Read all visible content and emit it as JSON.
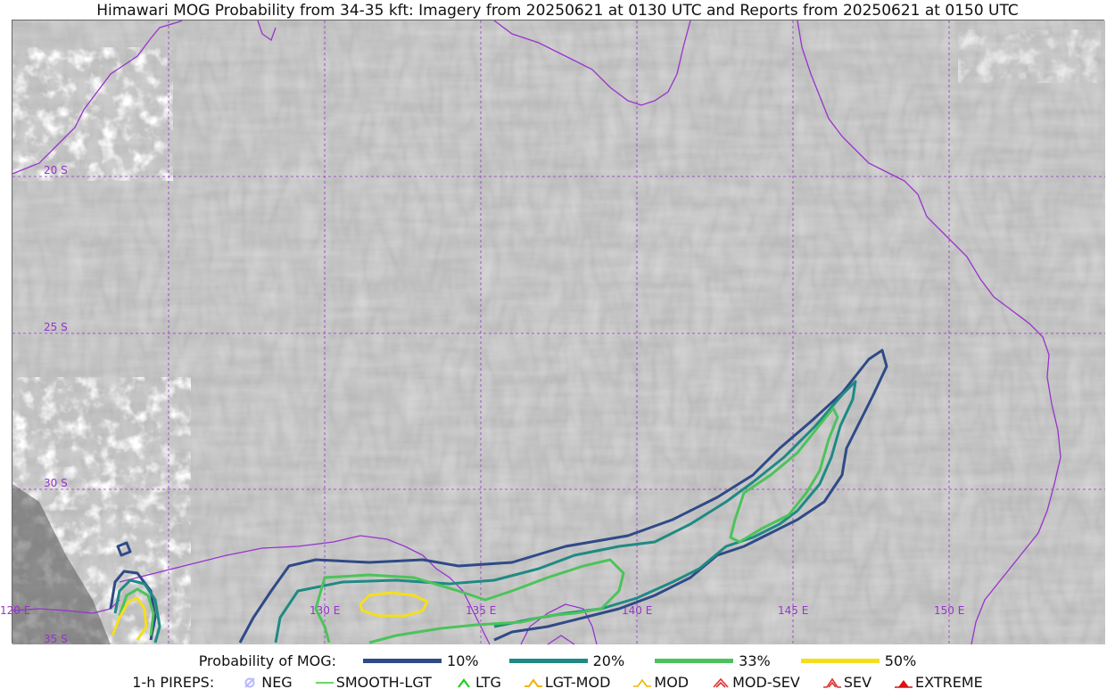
{
  "title": "Himawari MOG Probability from 34-35 kft: Imagery from 20250621 at 0130 UTC and Reports from 20250621 at 0150 UTC",
  "map": {
    "lat_labels": [
      "20 S",
      "25 S",
      "30 S",
      "35 S"
    ],
    "lon_labels": [
      "120 E",
      "130 E",
      "135 E",
      "140 E",
      "145 E",
      "150 E"
    ],
    "grid_color": "#9933cc",
    "coast_color": "#9933cc"
  },
  "legend": {
    "probability_title": "Probability of MOG:",
    "probability_levels": [
      {
        "label": "10%",
        "color": "#2f4a87"
      },
      {
        "label": "20%",
        "color": "#1f8a84"
      },
      {
        "label": "33%",
        "color": "#4cc35a"
      },
      {
        "label": "50%",
        "color": "#f5df1d"
      }
    ],
    "pireps_title": "1-h PIREPS:",
    "pireps": [
      {
        "label": "NEG",
        "color": "#b8b8ff",
        "icon": "neg-icon"
      },
      {
        "label": "SMOOTH-LGT",
        "color": "#33cc33",
        "icon": "smooth-lgt-icon"
      },
      {
        "label": "LTG",
        "color": "#22cc22",
        "icon": "ltg-icon"
      },
      {
        "label": "LGT-MOD",
        "color": "#f0b400",
        "icon": "lgt-mod-icon"
      },
      {
        "label": "MOD",
        "color": "#f0b400",
        "icon": "mod-icon"
      },
      {
        "label": "MOD-SEV",
        "color": "#e03030",
        "icon": "mod-sev-icon"
      },
      {
        "label": "SEV",
        "color": "#e03030",
        "icon": "sev-icon"
      },
      {
        "label": "EXTREME",
        "color": "#dd1111",
        "icon": "extreme-icon"
      }
    ]
  }
}
